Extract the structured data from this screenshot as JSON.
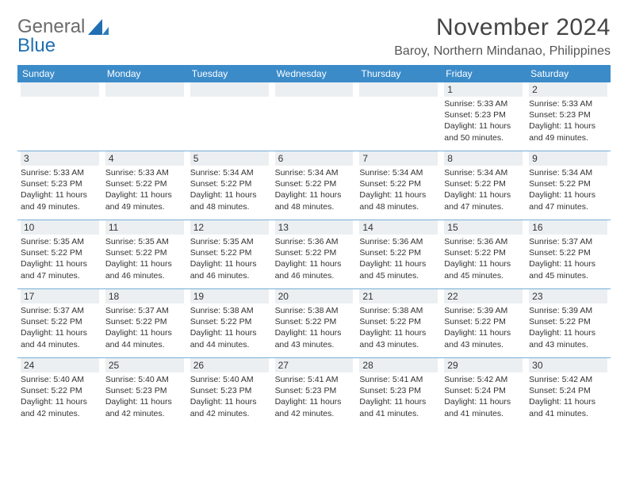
{
  "logo": {
    "word1": "General",
    "word2": "Blue"
  },
  "title": "November 2024",
  "location": "Baroy, Northern Mindanao, Philippines",
  "colors": {
    "header_bg": "#3b8bc9",
    "daynum_bg": "#eceff1",
    "sep": "#3b8bc9",
    "text": "#333333",
    "logo_gray": "#6b6b6b",
    "logo_blue": "#1f6fb2"
  },
  "day_headers": [
    "Sunday",
    "Monday",
    "Tuesday",
    "Wednesday",
    "Thursday",
    "Friday",
    "Saturday"
  ],
  "weeks": [
    [
      null,
      null,
      null,
      null,
      null,
      {
        "n": "1",
        "sr": "Sunrise: 5:33 AM",
        "ss": "Sunset: 5:23 PM",
        "dl1": "Daylight: 11 hours",
        "dl2": "and 50 minutes."
      },
      {
        "n": "2",
        "sr": "Sunrise: 5:33 AM",
        "ss": "Sunset: 5:23 PM",
        "dl1": "Daylight: 11 hours",
        "dl2": "and 49 minutes."
      }
    ],
    [
      {
        "n": "3",
        "sr": "Sunrise: 5:33 AM",
        "ss": "Sunset: 5:23 PM",
        "dl1": "Daylight: 11 hours",
        "dl2": "and 49 minutes."
      },
      {
        "n": "4",
        "sr": "Sunrise: 5:33 AM",
        "ss": "Sunset: 5:22 PM",
        "dl1": "Daylight: 11 hours",
        "dl2": "and 49 minutes."
      },
      {
        "n": "5",
        "sr": "Sunrise: 5:34 AM",
        "ss": "Sunset: 5:22 PM",
        "dl1": "Daylight: 11 hours",
        "dl2": "and 48 minutes."
      },
      {
        "n": "6",
        "sr": "Sunrise: 5:34 AM",
        "ss": "Sunset: 5:22 PM",
        "dl1": "Daylight: 11 hours",
        "dl2": "and 48 minutes."
      },
      {
        "n": "7",
        "sr": "Sunrise: 5:34 AM",
        "ss": "Sunset: 5:22 PM",
        "dl1": "Daylight: 11 hours",
        "dl2": "and 48 minutes."
      },
      {
        "n": "8",
        "sr": "Sunrise: 5:34 AM",
        "ss": "Sunset: 5:22 PM",
        "dl1": "Daylight: 11 hours",
        "dl2": "and 47 minutes."
      },
      {
        "n": "9",
        "sr": "Sunrise: 5:34 AM",
        "ss": "Sunset: 5:22 PM",
        "dl1": "Daylight: 11 hours",
        "dl2": "and 47 minutes."
      }
    ],
    [
      {
        "n": "10",
        "sr": "Sunrise: 5:35 AM",
        "ss": "Sunset: 5:22 PM",
        "dl1": "Daylight: 11 hours",
        "dl2": "and 47 minutes."
      },
      {
        "n": "11",
        "sr": "Sunrise: 5:35 AM",
        "ss": "Sunset: 5:22 PM",
        "dl1": "Daylight: 11 hours",
        "dl2": "and 46 minutes."
      },
      {
        "n": "12",
        "sr": "Sunrise: 5:35 AM",
        "ss": "Sunset: 5:22 PM",
        "dl1": "Daylight: 11 hours",
        "dl2": "and 46 minutes."
      },
      {
        "n": "13",
        "sr": "Sunrise: 5:36 AM",
        "ss": "Sunset: 5:22 PM",
        "dl1": "Daylight: 11 hours",
        "dl2": "and 46 minutes."
      },
      {
        "n": "14",
        "sr": "Sunrise: 5:36 AM",
        "ss": "Sunset: 5:22 PM",
        "dl1": "Daylight: 11 hours",
        "dl2": "and 45 minutes."
      },
      {
        "n": "15",
        "sr": "Sunrise: 5:36 AM",
        "ss": "Sunset: 5:22 PM",
        "dl1": "Daylight: 11 hours",
        "dl2": "and 45 minutes."
      },
      {
        "n": "16",
        "sr": "Sunrise: 5:37 AM",
        "ss": "Sunset: 5:22 PM",
        "dl1": "Daylight: 11 hours",
        "dl2": "and 45 minutes."
      }
    ],
    [
      {
        "n": "17",
        "sr": "Sunrise: 5:37 AM",
        "ss": "Sunset: 5:22 PM",
        "dl1": "Daylight: 11 hours",
        "dl2": "and 44 minutes."
      },
      {
        "n": "18",
        "sr": "Sunrise: 5:37 AM",
        "ss": "Sunset: 5:22 PM",
        "dl1": "Daylight: 11 hours",
        "dl2": "and 44 minutes."
      },
      {
        "n": "19",
        "sr": "Sunrise: 5:38 AM",
        "ss": "Sunset: 5:22 PM",
        "dl1": "Daylight: 11 hours",
        "dl2": "and 44 minutes."
      },
      {
        "n": "20",
        "sr": "Sunrise: 5:38 AM",
        "ss": "Sunset: 5:22 PM",
        "dl1": "Daylight: 11 hours",
        "dl2": "and 43 minutes."
      },
      {
        "n": "21",
        "sr": "Sunrise: 5:38 AM",
        "ss": "Sunset: 5:22 PM",
        "dl1": "Daylight: 11 hours",
        "dl2": "and 43 minutes."
      },
      {
        "n": "22",
        "sr": "Sunrise: 5:39 AM",
        "ss": "Sunset: 5:22 PM",
        "dl1": "Daylight: 11 hours",
        "dl2": "and 43 minutes."
      },
      {
        "n": "23",
        "sr": "Sunrise: 5:39 AM",
        "ss": "Sunset: 5:22 PM",
        "dl1": "Daylight: 11 hours",
        "dl2": "and 43 minutes."
      }
    ],
    [
      {
        "n": "24",
        "sr": "Sunrise: 5:40 AM",
        "ss": "Sunset: 5:22 PM",
        "dl1": "Daylight: 11 hours",
        "dl2": "and 42 minutes."
      },
      {
        "n": "25",
        "sr": "Sunrise: 5:40 AM",
        "ss": "Sunset: 5:23 PM",
        "dl1": "Daylight: 11 hours",
        "dl2": "and 42 minutes."
      },
      {
        "n": "26",
        "sr": "Sunrise: 5:40 AM",
        "ss": "Sunset: 5:23 PM",
        "dl1": "Daylight: 11 hours",
        "dl2": "and 42 minutes."
      },
      {
        "n": "27",
        "sr": "Sunrise: 5:41 AM",
        "ss": "Sunset: 5:23 PM",
        "dl1": "Daylight: 11 hours",
        "dl2": "and 42 minutes."
      },
      {
        "n": "28",
        "sr": "Sunrise: 5:41 AM",
        "ss": "Sunset: 5:23 PM",
        "dl1": "Daylight: 11 hours",
        "dl2": "and 41 minutes."
      },
      {
        "n": "29",
        "sr": "Sunrise: 5:42 AM",
        "ss": "Sunset: 5:24 PM",
        "dl1": "Daylight: 11 hours",
        "dl2": "and 41 minutes."
      },
      {
        "n": "30",
        "sr": "Sunrise: 5:42 AM",
        "ss": "Sunset: 5:24 PM",
        "dl1": "Daylight: 11 hours",
        "dl2": "and 41 minutes."
      }
    ]
  ]
}
